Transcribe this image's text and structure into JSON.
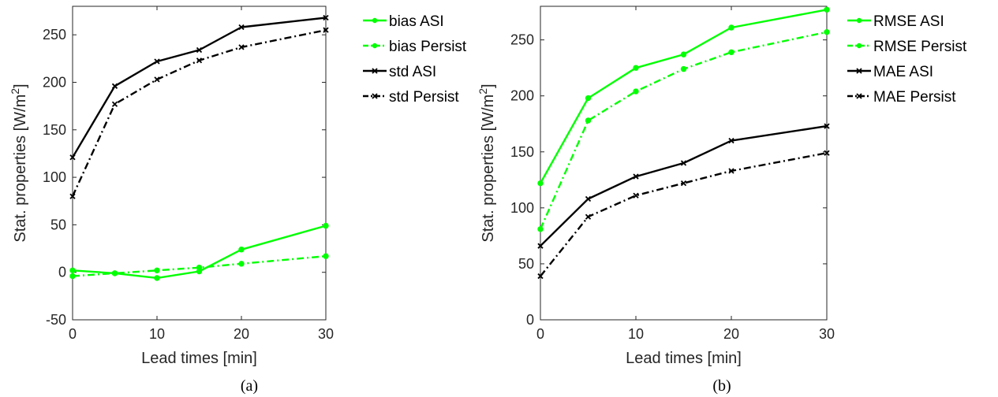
{
  "chart_data": [
    {
      "type": "line",
      "caption": "(a)",
      "xlabel": "Lead times [min]",
      "ylabel_prefix": "Stat. properties [W/m",
      "ylabel_sup": "2",
      "ylabel_suffix": "]",
      "x": [
        0,
        5,
        10,
        15,
        20,
        30
      ],
      "xlim": [
        0,
        30
      ],
      "ylim": [
        -50,
        280
      ],
      "xticks": [
        0,
        10,
        20,
        30
      ],
      "yticks": [
        -50,
        0,
        50,
        100,
        150,
        200,
        250
      ],
      "grid": false,
      "legend": "outside-top-right",
      "series": [
        {
          "name": "bias ASI",
          "color": "#00ff00",
          "dash": "solid",
          "marker": "dot",
          "values": [
            2,
            -1,
            -6,
            1,
            24,
            49
          ]
        },
        {
          "name": "bias Persist",
          "color": "#00ff00",
          "dash": "dashdot",
          "marker": "dot",
          "values": [
            -4,
            -1,
            2,
            5,
            9,
            17
          ]
        },
        {
          "name": "std ASI",
          "color": "#000000",
          "dash": "solid",
          "marker": "x",
          "values": [
            121,
            196,
            222,
            234,
            258,
            268
          ]
        },
        {
          "name": "std Persist",
          "color": "#000000",
          "dash": "dashdot",
          "marker": "x",
          "values": [
            80,
            177,
            203,
            223,
            237,
            255
          ]
        }
      ]
    },
    {
      "type": "line",
      "caption": "(b)",
      "xlabel": "Lead times [min]",
      "ylabel_prefix": "Stat. properties [W/m",
      "ylabel_sup": "2",
      "ylabel_suffix": "]",
      "x": [
        0,
        5,
        10,
        15,
        20,
        30
      ],
      "xlim": [
        0,
        30
      ],
      "ylim": [
        0,
        280
      ],
      "xticks": [
        0,
        10,
        20,
        30
      ],
      "yticks": [
        0,
        50,
        100,
        150,
        200,
        250
      ],
      "grid": false,
      "legend": "outside-top-right",
      "series": [
        {
          "name": "RMSE ASI",
          "color": "#00ff00",
          "dash": "solid",
          "marker": "dot",
          "values": [
            122,
            198,
            225,
            237,
            261,
            277
          ]
        },
        {
          "name": "RMSE Persist",
          "color": "#00ff00",
          "dash": "dashdot",
          "marker": "dot",
          "values": [
            81,
            178,
            204,
            224,
            239,
            257
          ]
        },
        {
          "name": "MAE ASI",
          "color": "#000000",
          "dash": "solid",
          "marker": "x",
          "values": [
            66,
            108,
            128,
            140,
            160,
            173
          ]
        },
        {
          "name": "MAE Persist",
          "color": "#000000",
          "dash": "dashdot",
          "marker": "x",
          "values": [
            39,
            92,
            111,
            122,
            133,
            149
          ]
        }
      ]
    }
  ]
}
